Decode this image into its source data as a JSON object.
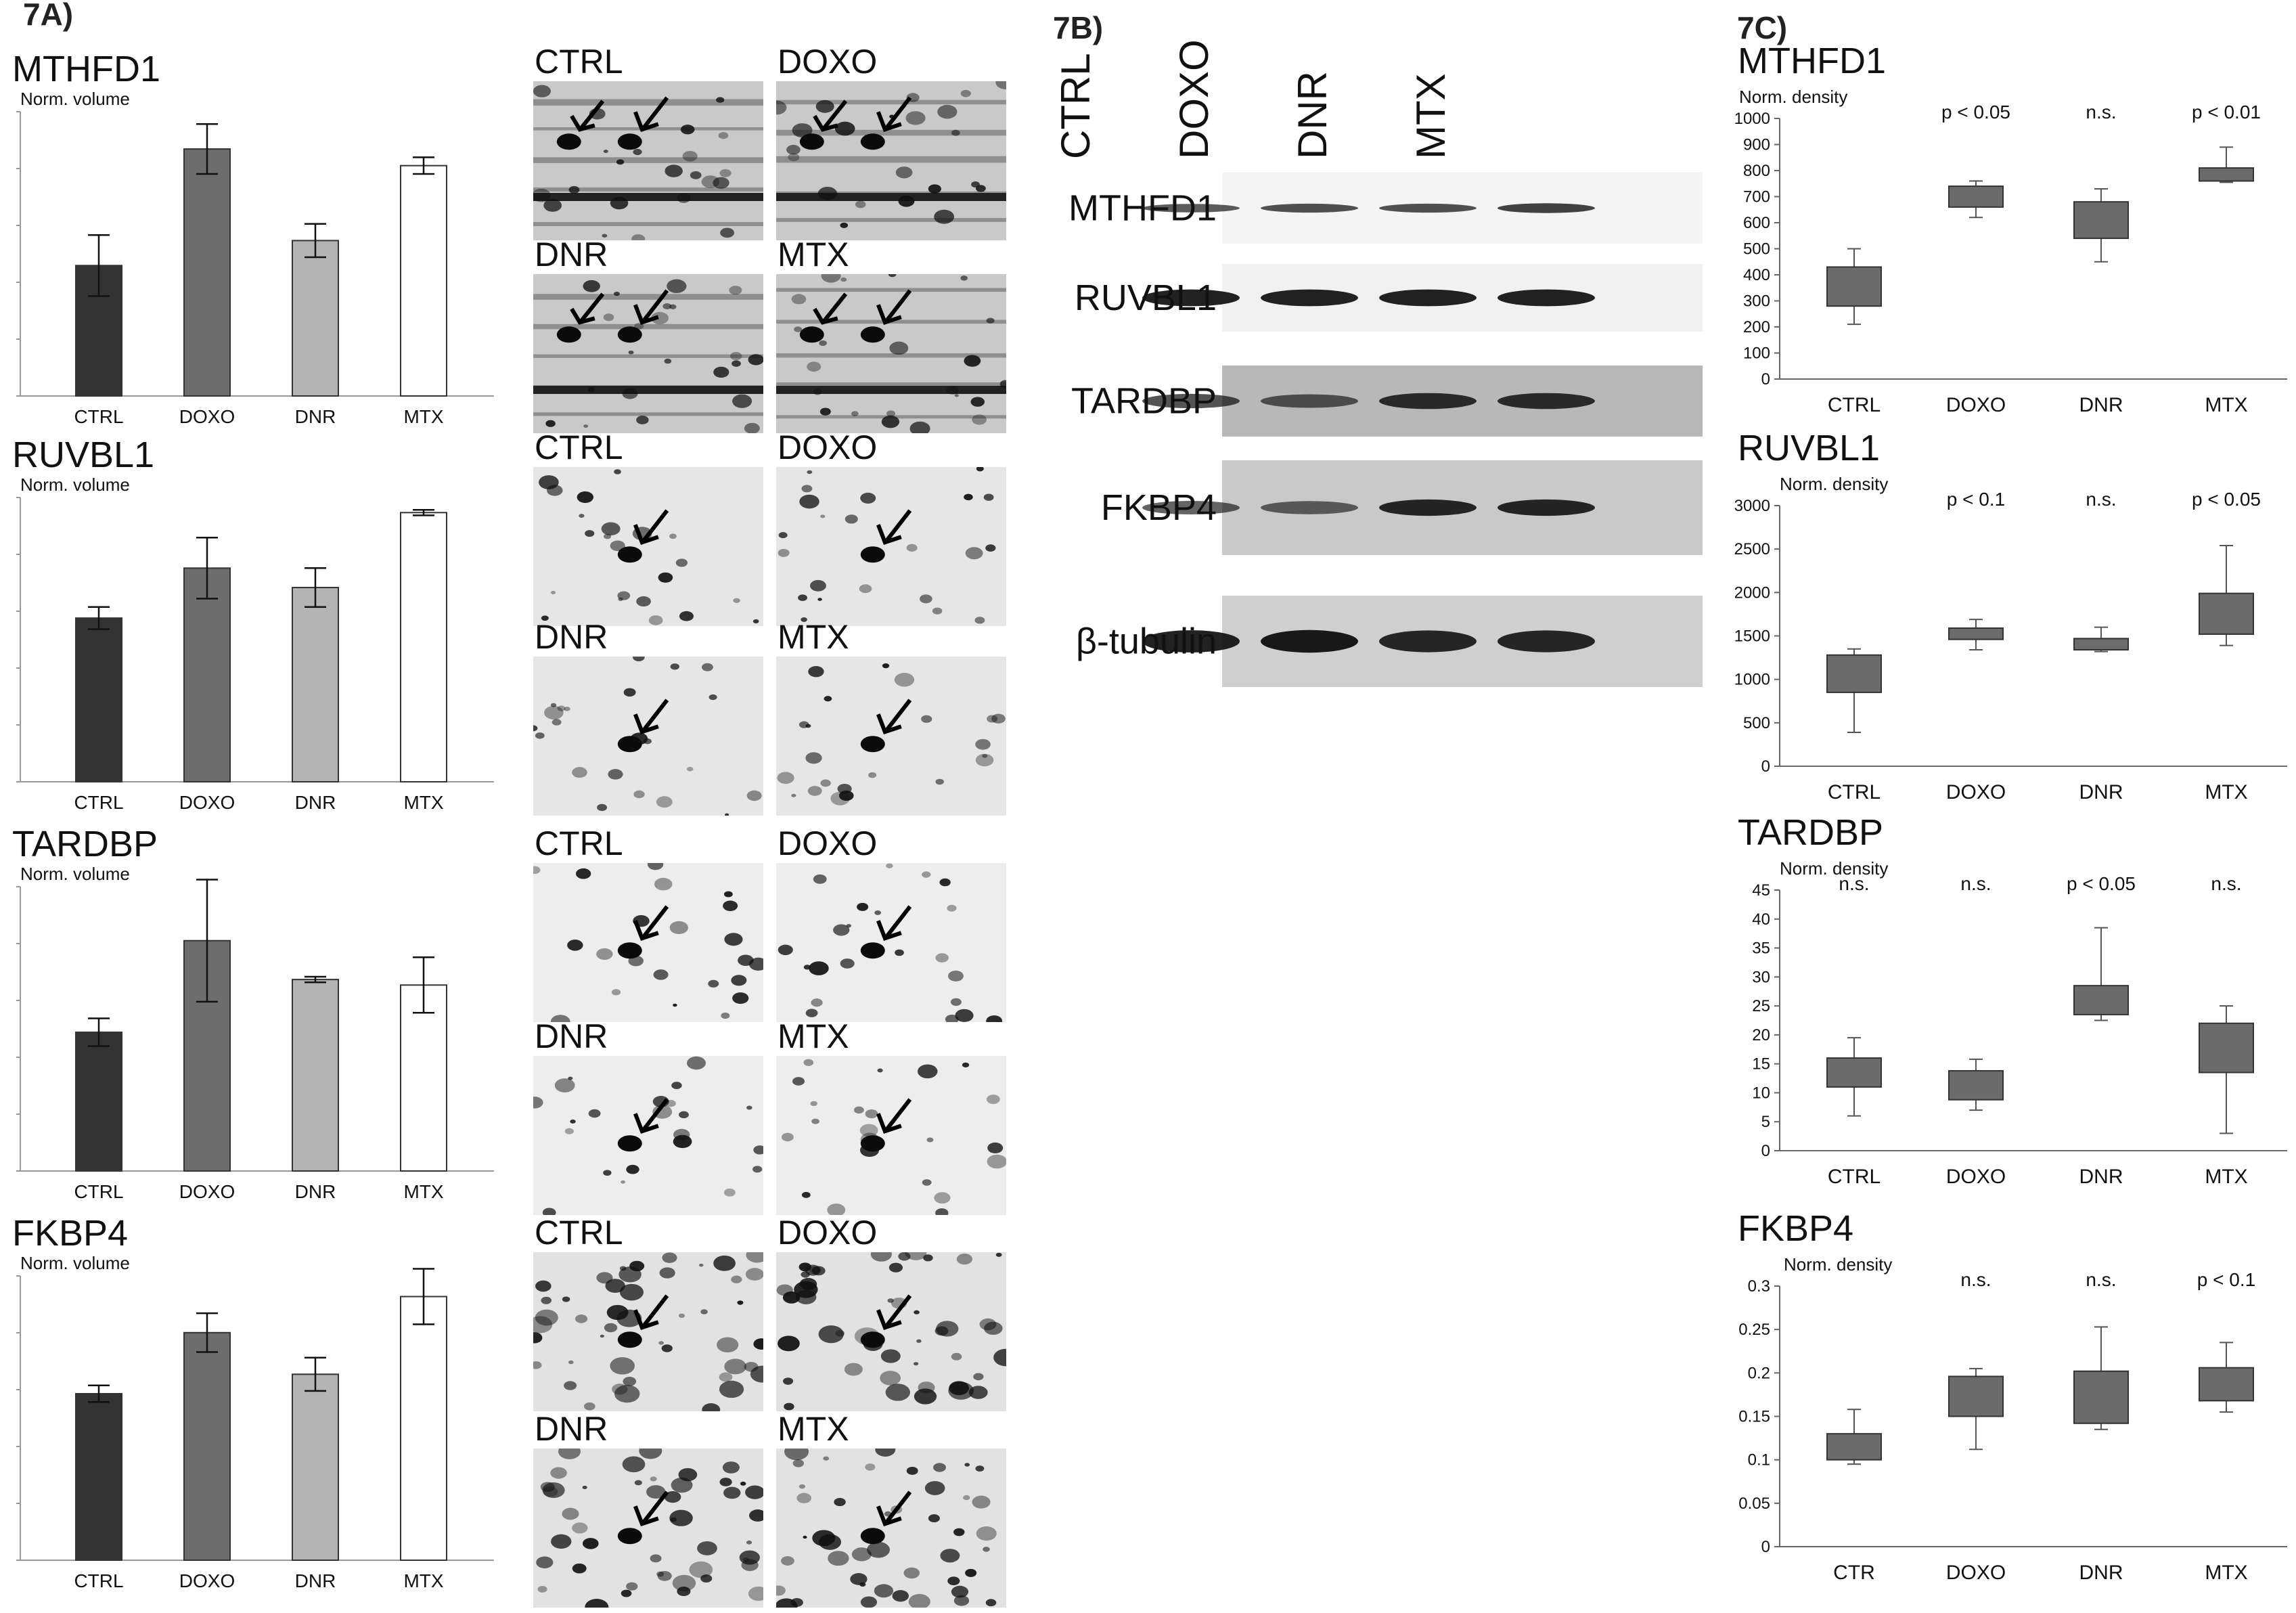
{
  "panels": {
    "a_label": "7A)",
    "b_label": "7B)",
    "c_label": "7C)"
  },
  "a_charts": [
    {
      "protein": "MTHFD1",
      "ylabel": "Norm. volume",
      "categories": [
        "CTRL",
        "DOXO",
        "DNR",
        "MTX"
      ],
      "values": [
        0.47,
        0.89,
        0.56,
        0.83
      ],
      "errors": [
        0.11,
        0.09,
        0.06,
        0.03
      ],
      "colors": [
        "#333333",
        "#6d6d6d",
        "#b4b4b4",
        "#ffffff"
      ]
    },
    {
      "protein": "RUVBL1",
      "ylabel": "Norm. volume",
      "categories": [
        "CTRL",
        "DOXO",
        "DNR",
        "MTX"
      ],
      "values": [
        0.59,
        0.77,
        0.7,
        0.97
      ],
      "errors": [
        0.04,
        0.11,
        0.07,
        0.01
      ],
      "colors": [
        "#333333",
        "#6d6d6d",
        "#b4b4b4",
        "#ffffff"
      ]
    },
    {
      "protein": "TARDBP",
      "ylabel": "Norm. volume",
      "categories": [
        "CTRL",
        "DOXO",
        "DNR",
        "MTX"
      ],
      "values": [
        0.5,
        0.83,
        0.69,
        0.67
      ],
      "errors": [
        0.05,
        0.22,
        0.01,
        0.1
      ],
      "colors": [
        "#333333",
        "#6d6d6d",
        "#b4b4b4",
        "#ffffff"
      ]
    },
    {
      "protein": "FKBP4",
      "ylabel": "Norm. volume",
      "categories": [
        "CTRL",
        "DOXO",
        "DNR",
        "MTX"
      ],
      "values": [
        0.6,
        0.82,
        0.67,
        0.95
      ],
      "errors": [
        0.03,
        0.07,
        0.06,
        0.1
      ],
      "colors": [
        "#333333",
        "#6d6d6d",
        "#b4b4b4",
        "#ffffff"
      ]
    }
  ],
  "gels": [
    {
      "row": 0,
      "labels": [
        "CTRL",
        "DOXO"
      ]
    },
    {
      "row": 1,
      "labels": [
        "DNR",
        "MTX"
      ]
    },
    {
      "row": 2,
      "labels": [
        "CTRL",
        "DOXO"
      ]
    },
    {
      "row": 3,
      "labels": [
        "DNR",
        "MTX"
      ]
    },
    {
      "row": 4,
      "labels": [
        "CTRL",
        "DOXO"
      ]
    },
    {
      "row": 5,
      "labels": [
        "DNR",
        "MTX"
      ]
    },
    {
      "row": 6,
      "labels": [
        "CTRL",
        "DOXO"
      ]
    },
    {
      "row": 7,
      "labels": [
        "DNR",
        "MTX"
      ]
    }
  ],
  "blot": {
    "lanes": [
      "CTRL",
      "DOXO",
      "DNR",
      "MTX"
    ],
    "rows": [
      {
        "protein": "MTHFD1",
        "bg": "#f4f4f4",
        "band": [
          0.55,
          0.6,
          0.6,
          0.7
        ]
      },
      {
        "protein": "RUVBL1",
        "bg": "#f1f1f1",
        "band": [
          0.9,
          0.9,
          0.9,
          0.9
        ]
      },
      {
        "protein": "TARDBP",
        "bg": "#b8b8b8",
        "band": [
          0.6,
          0.5,
          0.8,
          0.8
        ]
      },
      {
        "protein": "FKBP4",
        "bg": "#c9c9c9",
        "band": [
          0.5,
          0.45,
          0.85,
          0.85
        ]
      },
      {
        "protein": "β-tubulin",
        "bg": "#cfcfcf",
        "band": [
          0.9,
          0.95,
          0.85,
          0.85
        ]
      }
    ]
  },
  "chart_data": [
    {
      "type": "bar",
      "title": "MTHFD1",
      "ylabel": "Norm. volume",
      "categories": [
        "CTRL",
        "DOXO",
        "DNR",
        "MTX"
      ],
      "values": [
        0.47,
        0.89,
        0.56,
        0.83
      ]
    },
    {
      "type": "bar",
      "title": "RUVBL1",
      "ylabel": "Norm. volume",
      "categories": [
        "CTRL",
        "DOXO",
        "DNR",
        "MTX"
      ],
      "values": [
        0.59,
        0.77,
        0.7,
        0.97
      ]
    },
    {
      "type": "bar",
      "title": "TARDBP",
      "ylabel": "Norm. volume",
      "categories": [
        "CTRL",
        "DOXO",
        "DNR",
        "MTX"
      ],
      "values": [
        0.5,
        0.83,
        0.69,
        0.67
      ]
    },
    {
      "type": "bar",
      "title": "FKBP4",
      "ylabel": "Norm. volume",
      "categories": [
        "CTRL",
        "DOXO",
        "DNR",
        "MTX"
      ],
      "values": [
        0.6,
        0.82,
        0.67,
        0.95
      ]
    },
    {
      "type": "box",
      "title": "MTHFD1",
      "ylabel": "Norm. density",
      "categories": [
        "CTRL",
        "DOXO",
        "DNR",
        "MTX"
      ],
      "yticks": [
        "0",
        "100",
        "200",
        "300",
        "400",
        "500",
        "600",
        "700",
        "800",
        "900",
        "1000"
      ],
      "ylim": [
        0,
        1000
      ],
      "pvalues": [
        "",
        "p < 0.05",
        "n.s.",
        "p < 0.01"
      ],
      "boxes": [
        [
          210,
          280,
          430,
          500
        ],
        [
          620,
          660,
          740,
          760
        ],
        [
          450,
          540,
          680,
          730
        ],
        [
          755,
          760,
          810,
          890
        ]
      ]
    },
    {
      "type": "box",
      "title": "RUVBL1",
      "ylabel": "Norm. density",
      "categories": [
        "CTRL",
        "DOXO",
        "DNR",
        "MTX"
      ],
      "yticks": [
        "0",
        "500",
        "1000",
        "1500",
        "2000",
        "2500",
        "3000"
      ],
      "ylim": [
        0,
        3000
      ],
      "pvalues": [
        "",
        "p < 0.1",
        "n.s.",
        "p < 0.05"
      ],
      "boxes": [
        [
          390,
          850,
          1280,
          1350
        ],
        [
          1340,
          1460,
          1590,
          1690
        ],
        [
          1320,
          1340,
          1470,
          1600
        ],
        [
          1390,
          1520,
          1990,
          2540
        ]
      ]
    },
    {
      "type": "box",
      "title": "TARDBP",
      "ylabel": "Norm. density",
      "categories": [
        "CTRL",
        "DOXO",
        "DNR",
        "MTX"
      ],
      "yticks": [
        "0",
        "5",
        "10",
        "15",
        "20",
        "25",
        "30",
        "35",
        "40",
        "45"
      ],
      "ylim": [
        0,
        45
      ],
      "pvalues": [
        "n.s.",
        "n.s.",
        "p < 0.05",
        "n.s."
      ],
      "boxes": [
        [
          6,
          11,
          16,
          19.5
        ],
        [
          7,
          8.8,
          13.8,
          15.8
        ],
        [
          22.5,
          23.5,
          28.5,
          38.5
        ],
        [
          3,
          13.5,
          22,
          25
        ]
      ]
    },
    {
      "type": "box",
      "title": "FKBP4",
      "ylabel": "Norm. density",
      "categories": [
        "CTR",
        "DOXO",
        "DNR",
        "MTX"
      ],
      "yticks": [
        "0",
        "0.05",
        "0.1",
        "0.15",
        "0.2",
        "0.25",
        "0.3"
      ],
      "ylim": [
        0,
        0.3
      ],
      "pvalues": [
        "n.s.",
        "n.s.",
        "p < 0.1"
      ],
      "pvalue_positions": [
        1,
        2,
        3
      ],
      "boxes": [
        [
          0.095,
          0.1,
          0.13,
          0.158
        ],
        [
          0.112,
          0.15,
          0.196,
          0.205
        ],
        [
          0.135,
          0.142,
          0.202,
          0.253
        ],
        [
          0.155,
          0.168,
          0.206,
          0.235
        ]
      ]
    }
  ]
}
